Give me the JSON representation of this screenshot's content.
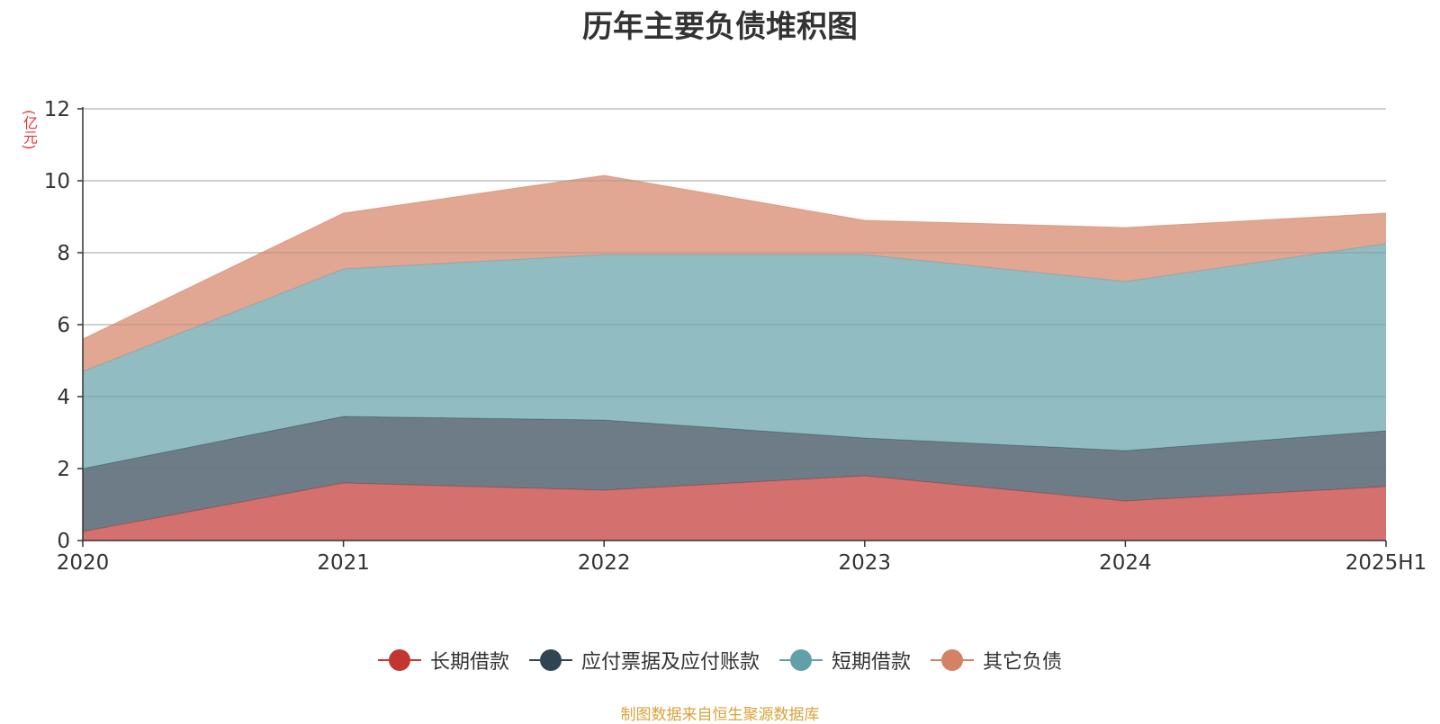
{
  "title": "历年主要负债堆积图",
  "unit_label": "(亿元)",
  "source": "制图数据来自恒生聚源数据库",
  "chart_data": {
    "type": "area",
    "stacked": true,
    "title": "历年主要负债堆积图",
    "ylabel": "(亿元)",
    "xlabel": "",
    "categories": [
      "2020",
      "2021",
      "2022",
      "2023",
      "2024",
      "2025H1"
    ],
    "ylim": [
      0,
      12
    ],
    "yticks": [
      0,
      2,
      4,
      6,
      8,
      10,
      12
    ],
    "grid": true,
    "legend_position": "bottom",
    "series": [
      {
        "name": "长期借款",
        "color": "#c23531",
        "values": [
          0.25,
          1.6,
          1.4,
          1.8,
          1.1,
          1.5
        ]
      },
      {
        "name": "应付票据及应付账款",
        "color": "#2f4554",
        "values": [
          1.75,
          1.85,
          1.95,
          1.05,
          1.4,
          1.55
        ]
      },
      {
        "name": "短期借款",
        "color": "#61a0a8",
        "values": [
          2.7,
          4.1,
          4.6,
          5.1,
          4.7,
          5.2
        ]
      },
      {
        "name": "其它负债",
        "color": "#d48265",
        "values": [
          0.9,
          1.55,
          2.2,
          0.95,
          1.5,
          0.85
        ]
      }
    ]
  }
}
